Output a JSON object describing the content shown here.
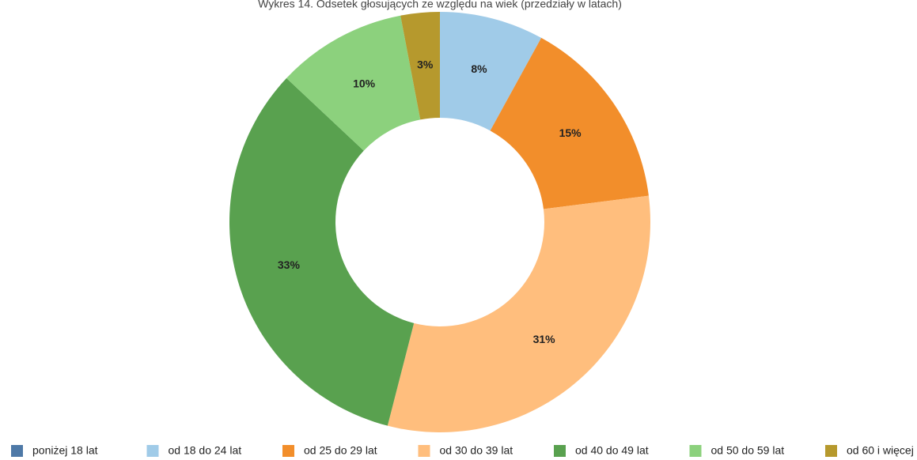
{
  "chart_data": {
    "type": "donut",
    "title": "Wykres 14. Odsetek głosujących ze względu na wiek (przedziały w latach)",
    "categories": [
      "poniżej 18 lat",
      "od 18 do 24 lat",
      "od 25 do 29 lat",
      "od 30 do 39 lat",
      "od 40 do 49 lat",
      "od 50 do 59 lat",
      "od 60 i więcej"
    ],
    "values": [
      0,
      8,
      15,
      31,
      33,
      10,
      3
    ],
    "value_labels": [
      null,
      "8%",
      "15%",
      "31%",
      "33%",
      "10%",
      "3%"
    ],
    "colors": [
      "#4e79a7",
      "#a0cbe8",
      "#f28e2b",
      "#ffbe7d",
      "#59a14f",
      "#8cd17d",
      "#b6992d"
    ],
    "legend": "bottom"
  }
}
